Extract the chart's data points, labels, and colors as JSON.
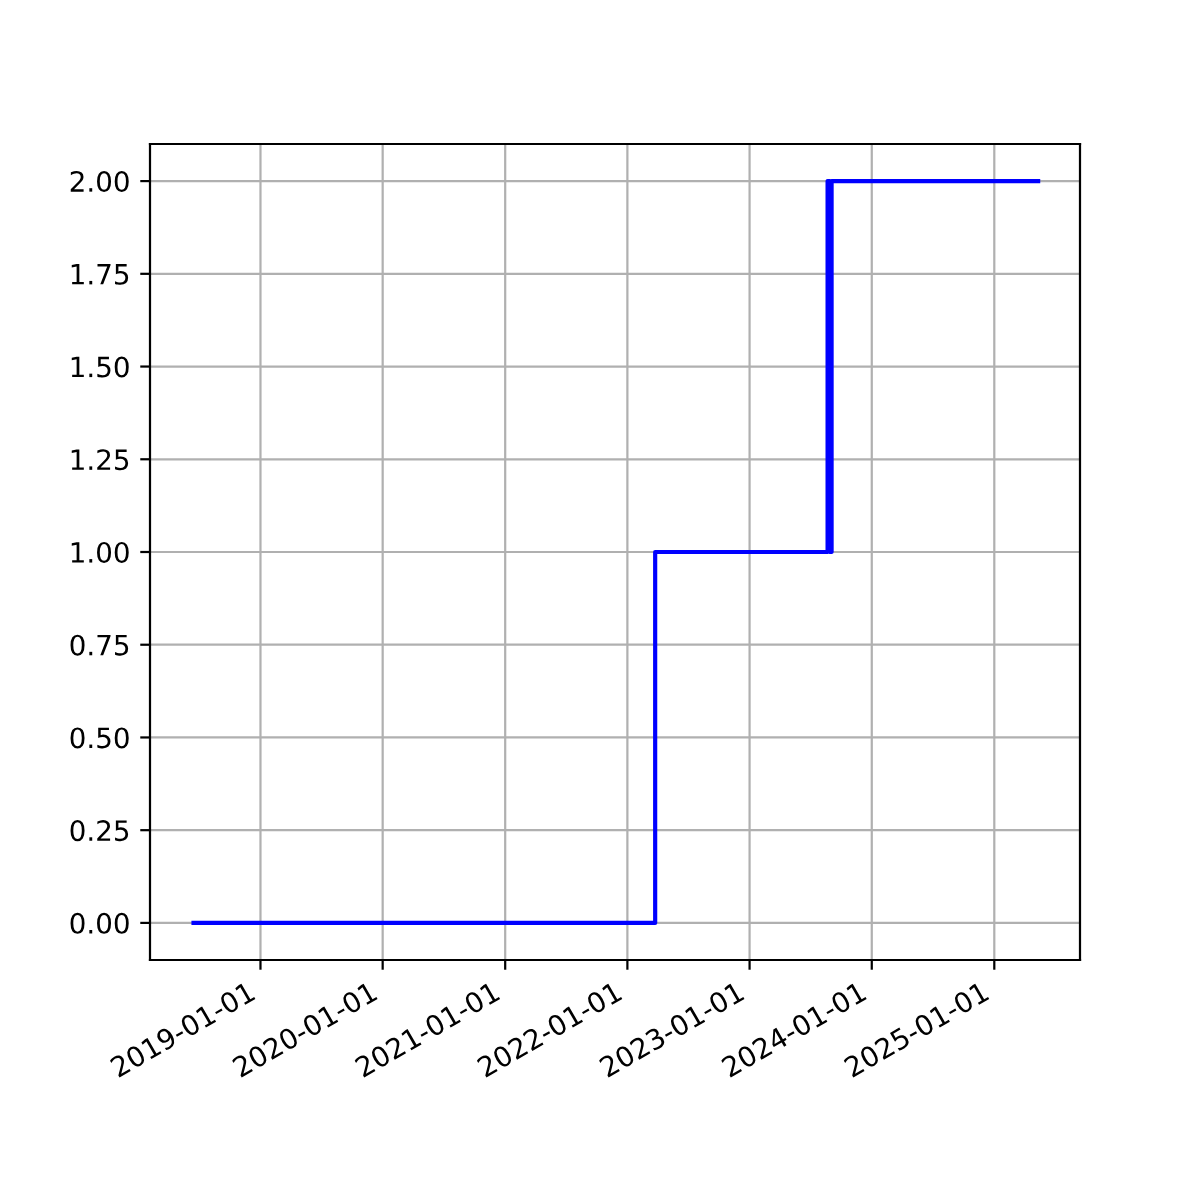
{
  "chart_data": {
    "type": "step",
    "x": [
      "2018-06-15",
      "2022-03-25",
      "2023-08-22",
      "2023-08-28",
      "2023-09-03",
      "2025-05-12"
    ],
    "series": [
      {
        "color": "#0000ff",
        "values": [
          0,
          1,
          2,
          1,
          2,
          2
        ]
      }
    ],
    "xlim": [
      "2018-02-05",
      "2025-09-14"
    ],
    "xticks": [
      "2019-01-01",
      "2020-01-01",
      "2021-01-01",
      "2022-01-01",
      "2023-01-01",
      "2024-01-01",
      "2025-01-01"
    ],
    "ylim": [
      -0.1,
      2.1
    ],
    "yticks": [
      {
        "value": 0,
        "label": "0.00"
      },
      {
        "value": 0.25,
        "label": "0.25"
      },
      {
        "value": 0.5,
        "label": "0.50"
      },
      {
        "value": 0.75,
        "label": "0.75"
      },
      {
        "value": 1,
        "label": "1.00"
      },
      {
        "value": 1.25,
        "label": "1.25"
      },
      {
        "value": 1.5,
        "label": "1.50"
      },
      {
        "value": 1.75,
        "label": "1.75"
      },
      {
        "value": 2,
        "label": "2.00"
      }
    ],
    "grid": true
  }
}
